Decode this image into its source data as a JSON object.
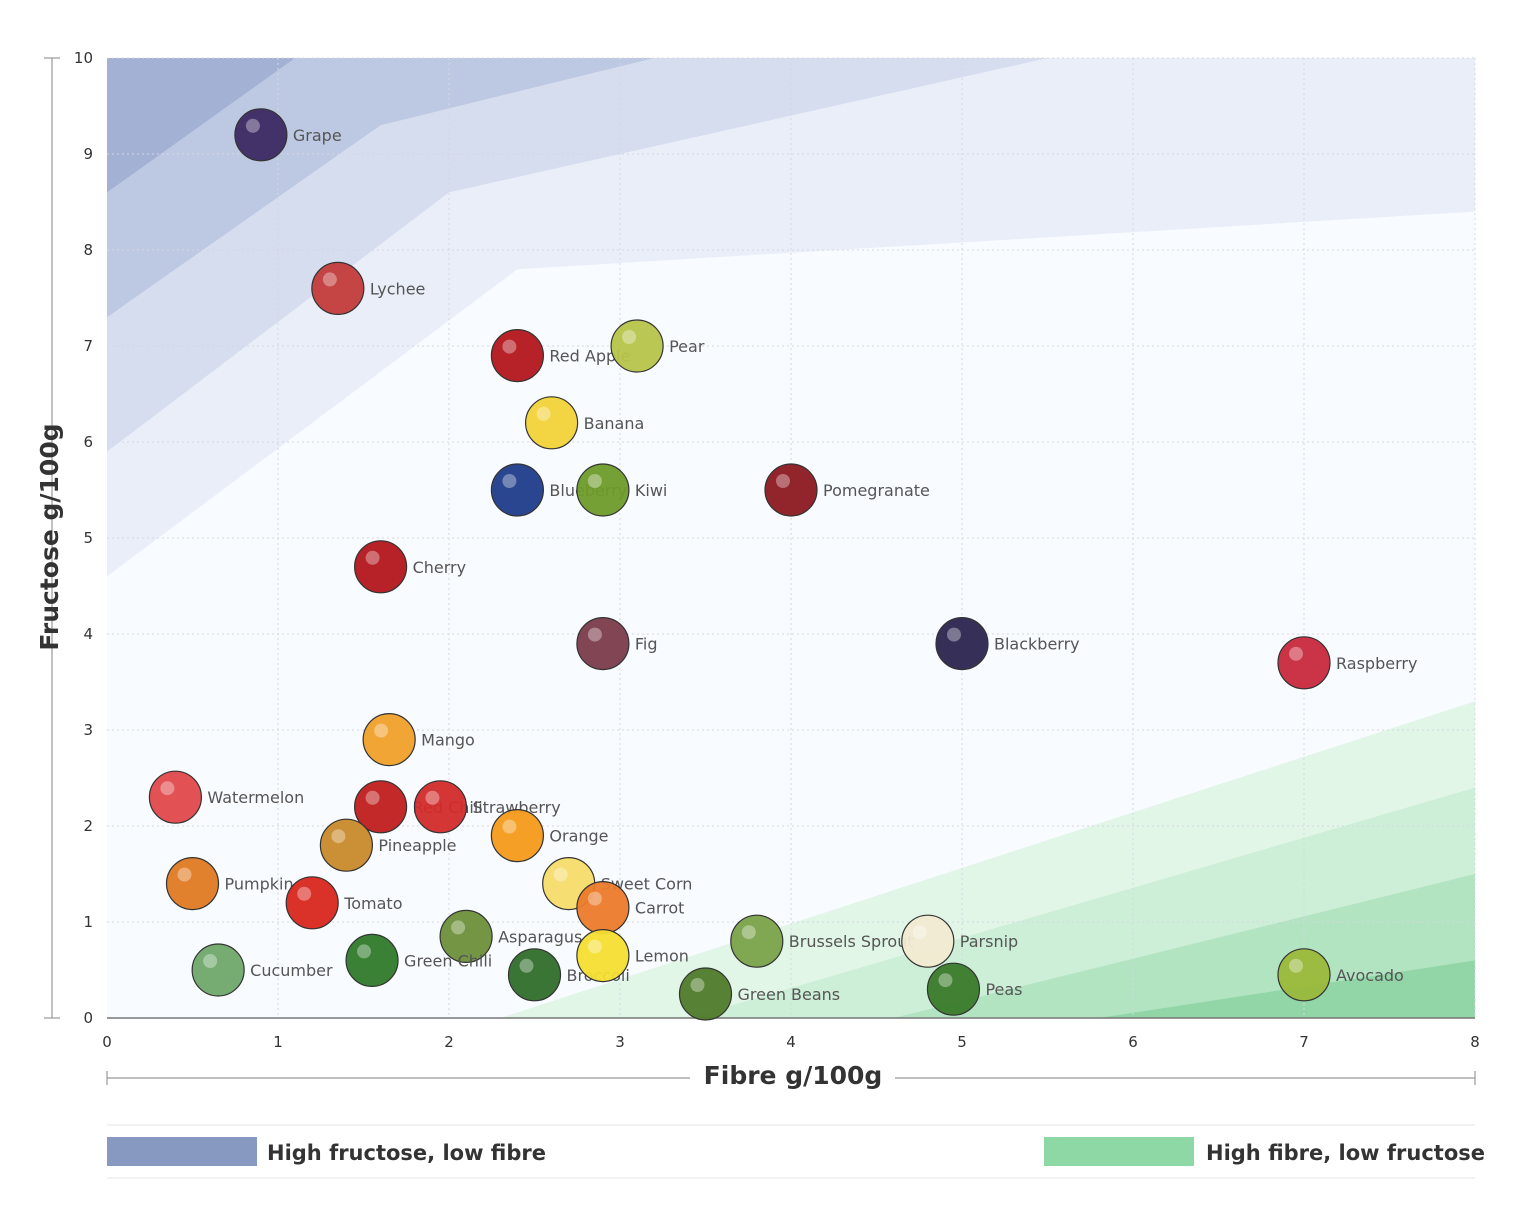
{
  "chart_data": {
    "type": "scatter",
    "title": "",
    "xlabel": "Fibre g/100g",
    "ylabel": "Fructose g/100g",
    "xlim": [
      0,
      8
    ],
    "ylim": [
      0,
      10
    ],
    "x_ticks": [
      "0",
      "1",
      "2",
      "3",
      "4",
      "5",
      "6",
      "7",
      "8"
    ],
    "y_ticks": [
      "0",
      "1",
      "2",
      "3",
      "4",
      "5",
      "6",
      "7",
      "8",
      "9",
      "10"
    ],
    "grid": true,
    "points": [
      {
        "name": "Grape",
        "x": 0.9,
        "y": 9.2,
        "color": "#3c2a62",
        "icon": "grape-icon"
      },
      {
        "name": "Lychee",
        "x": 1.35,
        "y": 7.6,
        "color": "#c33a3a",
        "icon": "lychee-icon"
      },
      {
        "name": "Red Apple",
        "x": 2.4,
        "y": 6.9,
        "color": "#b3161c",
        "icon": "apple-icon"
      },
      {
        "name": "Pear",
        "x": 3.1,
        "y": 7.0,
        "color": "#b7c44a",
        "icon": "pear-icon"
      },
      {
        "name": "Banana",
        "x": 2.6,
        "y": 6.2,
        "color": "#f2d33a",
        "icon": "banana-icon"
      },
      {
        "name": "Blueberry",
        "x": 2.4,
        "y": 5.5,
        "color": "#1f3c8a",
        "icon": "blueberry-icon"
      },
      {
        "name": "Kiwi",
        "x": 2.9,
        "y": 5.5,
        "color": "#6e9b2a",
        "icon": "kiwi-icon"
      },
      {
        "name": "Pomegranate",
        "x": 4.0,
        "y": 5.5,
        "color": "#8c1820",
        "icon": "pomegranate-icon"
      },
      {
        "name": "Cherry",
        "x": 1.6,
        "y": 4.7,
        "color": "#b3161c",
        "icon": "cherry-icon"
      },
      {
        "name": "Fig",
        "x": 2.9,
        "y": 3.9,
        "color": "#7a3b4a",
        "icon": "fig-icon"
      },
      {
        "name": "Blackberry",
        "x": 5.0,
        "y": 3.9,
        "color": "#2b2550",
        "icon": "blackberry-icon"
      },
      {
        "name": "Raspberry",
        "x": 7.0,
        "y": 3.7,
        "color": "#c8283c",
        "icon": "raspberry-icon"
      },
      {
        "name": "Mango",
        "x": 1.65,
        "y": 2.9,
        "color": "#f0a02a",
        "icon": "mango-icon"
      },
      {
        "name": "Watermelon",
        "x": 0.4,
        "y": 2.3,
        "color": "#e0484a",
        "icon": "watermelon-icon"
      },
      {
        "name": "Red Chili",
        "x": 1.6,
        "y": 2.2,
        "color": "#c01e1e",
        "icon": "red-chili-icon"
      },
      {
        "name": "Strawberry",
        "x": 1.95,
        "y": 2.2,
        "color": "#d22a2a",
        "icon": "strawberry-icon"
      },
      {
        "name": "Orange",
        "x": 2.4,
        "y": 1.9,
        "color": "#f49a1a",
        "icon": "orange-icon"
      },
      {
        "name": "Pumpkin",
        "x": 0.5,
        "y": 1.4,
        "color": "#e07a22",
        "icon": "pumpkin-icon"
      },
      {
        "name": "Pineapple",
        "x": 1.4,
        "y": 1.8,
        "color": "#c88a2a",
        "icon": "pineapple-icon"
      },
      {
        "name": "Sweet Corn",
        "x": 2.7,
        "y": 1.4,
        "color": "#f6dc6a",
        "icon": "corn-icon"
      },
      {
        "name": "Carrot",
        "x": 2.9,
        "y": 1.15,
        "color": "#ec7a2a",
        "icon": "carrot-icon"
      },
      {
        "name": "Tomato",
        "x": 1.2,
        "y": 1.2,
        "color": "#d8261e",
        "icon": "tomato-icon"
      },
      {
        "name": "Asparagus",
        "x": 2.1,
        "y": 0.85,
        "color": "#6d8f3a",
        "icon": "asparagus-icon"
      },
      {
        "name": "Cucumber",
        "x": 0.65,
        "y": 0.5,
        "color": "#6fa86a",
        "icon": "cucumber-icon"
      },
      {
        "name": "Green Chili",
        "x": 1.55,
        "y": 0.6,
        "color": "#2f7a2a",
        "icon": "green-chili-icon"
      },
      {
        "name": "Broccoli",
        "x": 2.5,
        "y": 0.45,
        "color": "#2f6e2a",
        "icon": "broccoli-icon"
      },
      {
        "name": "Lemon",
        "x": 2.9,
        "y": 0.65,
        "color": "#f6de32",
        "icon": "lemon-icon"
      },
      {
        "name": "Green Beans",
        "x": 3.5,
        "y": 0.25,
        "color": "#4f7a2a",
        "icon": "green-beans-icon"
      },
      {
        "name": "Brussels Sprout",
        "x": 3.8,
        "y": 0.8,
        "color": "#7aa24a",
        "icon": "brussels-sprout-icon"
      },
      {
        "name": "Parsnip",
        "x": 4.8,
        "y": 0.8,
        "color": "#f2ead2",
        "icon": "parsnip-icon"
      },
      {
        "name": "Peas",
        "x": 4.95,
        "y": 0.3,
        "color": "#3a7a2a",
        "icon": "peas-icon"
      },
      {
        "name": "Avocado",
        "x": 7.0,
        "y": 0.45,
        "color": "#9ab83a",
        "icon": "avocado-icon"
      }
    ],
    "legend": [
      {
        "label": "High fructose, low fibre",
        "color": "#8799c0",
        "position": "bottom-left"
      },
      {
        "label": "High fibre, low fructose",
        "color": "#8ed8a5",
        "position": "bottom-right"
      }
    ]
  }
}
